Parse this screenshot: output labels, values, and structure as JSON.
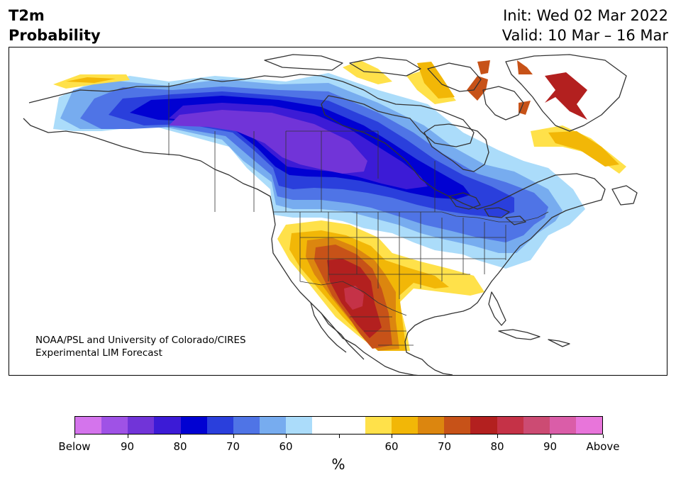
{
  "header": {
    "variable": "T2m",
    "product": "Probability",
    "init": "Init: Wed 02 Mar 2022",
    "valid": "Valid: 10 Mar – 16 Mar"
  },
  "credit": {
    "line1": "NOAA/PSL and University of Colorado/CIRES",
    "line2": "Experimental LIM Forecast"
  },
  "colorbar": {
    "unit": "%",
    "colors": [
      "#d474ec",
      "#9f52e6",
      "#7134d8",
      "#3c1bd6",
      "#0101d2",
      "#2a3fdc",
      "#4f74e6",
      "#77acef",
      "#abdcfa",
      "#ffffff",
      "#ffffff",
      "#ffe14a",
      "#f2b707",
      "#dc860f",
      "#c75218",
      "#b3201f",
      "#c53247",
      "#cc4b73",
      "#da5da8",
      "#e875da"
    ],
    "labels": [
      "Below",
      "90",
      "80",
      "70",
      "60",
      "",
      "60",
      "70",
      "80",
      "90",
      "Above"
    ]
  }
}
